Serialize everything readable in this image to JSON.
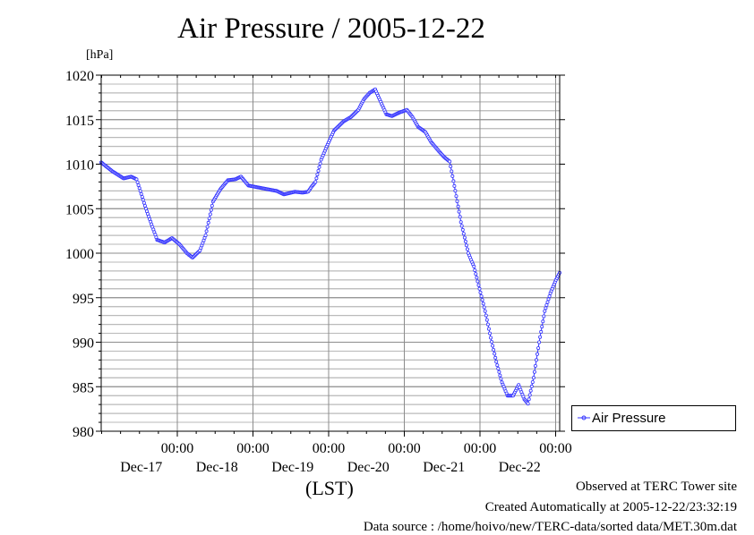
{
  "chart_data": {
    "type": "line",
    "title": "Air Pressure / 2005-12-22",
    "ylabel": "[hPa]",
    "xlabel": "(LST)",
    "ylim": [
      980,
      1020
    ],
    "yticks": [
      980,
      985,
      990,
      995,
      1000,
      1005,
      1010,
      1015,
      1020
    ],
    "x_range_hours": [
      -174,
      0
    ],
    "xticks": [
      {
        "time": "00:00",
        "date": "Dec-17"
      },
      {
        "time": "00:00",
        "date": "Dec-18"
      },
      {
        "time": "00:00",
        "date": "Dec-19"
      },
      {
        "time": "00:00",
        "date": "Dec-20"
      },
      {
        "time": "00:00",
        "date": "Dec-21"
      },
      {
        "time": "00:00",
        "date": "Dec-22"
      }
    ],
    "grid": true,
    "legend_position": "bottom-right",
    "series": [
      {
        "name": "Air Pressure",
        "color": "#3333ff",
        "points": [
          [
            -174,
            1010.2
          ],
          [
            -168,
            1009.2
          ],
          [
            -162,
            1008.4
          ],
          [
            -158,
            1008.6
          ],
          [
            -155,
            1008.3
          ],
          [
            -150,
            1005.0
          ],
          [
            -144,
            1001.5
          ],
          [
            -140,
            1001.2
          ],
          [
            -136,
            1001.7
          ],
          [
            -132,
            1001.0
          ],
          [
            -128,
            1000.0
          ],
          [
            -125,
            999.5
          ],
          [
            -121,
            1000.3
          ],
          [
            -118,
            1002.0
          ],
          [
            -114,
            1005.8
          ],
          [
            -110,
            1007.2
          ],
          [
            -106,
            1008.2
          ],
          [
            -102,
            1008.3
          ],
          [
            -99,
            1008.6
          ],
          [
            -95,
            1007.6
          ],
          [
            -90,
            1007.4
          ],
          [
            -85,
            1007.2
          ],
          [
            -80,
            1007.0
          ],
          [
            -76,
            1006.6
          ],
          [
            -70,
            1006.9
          ],
          [
            -66,
            1006.8
          ],
          [
            -63,
            1006.9
          ],
          [
            -61,
            1007.5
          ],
          [
            -59,
            1008.0
          ],
          [
            -56,
            1010.5
          ],
          [
            -53,
            1012.0
          ],
          [
            -49,
            1013.8
          ],
          [
            -44,
            1014.8
          ],
          [
            -40,
            1015.3
          ],
          [
            -36,
            1016.1
          ],
          [
            -33,
            1017.3
          ],
          [
            -30,
            1018.0
          ],
          [
            -27,
            1018.4
          ],
          [
            -24,
            1017.0
          ],
          [
            -21,
            1015.6
          ],
          [
            -18,
            1015.4
          ],
          [
            -14,
            1015.8
          ],
          [
            -10,
            1016.1
          ],
          [
            -7,
            1015.3
          ],
          [
            -4,
            1014.2
          ],
          [
            0,
            1013.6
          ],
          [
            3,
            1012.5
          ],
          [
            7,
            1011.5
          ],
          [
            10,
            1010.8
          ],
          [
            13,
            1010.3
          ],
          [
            16,
            1007.0
          ],
          [
            19,
            1003.5
          ],
          [
            23,
            1000.0
          ],
          [
            26,
            998.5
          ],
          [
            29,
            996.0
          ],
          [
            32,
            993.5
          ],
          [
            35,
            990.5
          ],
          [
            38,
            987.8
          ],
          [
            41,
            985.5
          ],
          [
            44,
            984.0
          ],
          [
            47,
            984.0
          ],
          [
            50,
            985.2
          ],
          [
            53,
            983.6
          ],
          [
            55,
            983.1
          ],
          [
            58,
            986.0
          ],
          [
            61,
            990.0
          ],
          [
            64,
            993.5
          ],
          [
            67,
            995.5
          ],
          [
            70,
            997.0
          ],
          [
            72,
            997.8
          ]
        ]
      }
    ]
  },
  "footer": {
    "line1": "Observed at TERC Tower site",
    "line2": "Created Automatically at 2005-12-22/23:32:19",
    "line3": "Data source : /home/hoivo/new/TERC-data/sorted  data/MET.30m.dat"
  }
}
